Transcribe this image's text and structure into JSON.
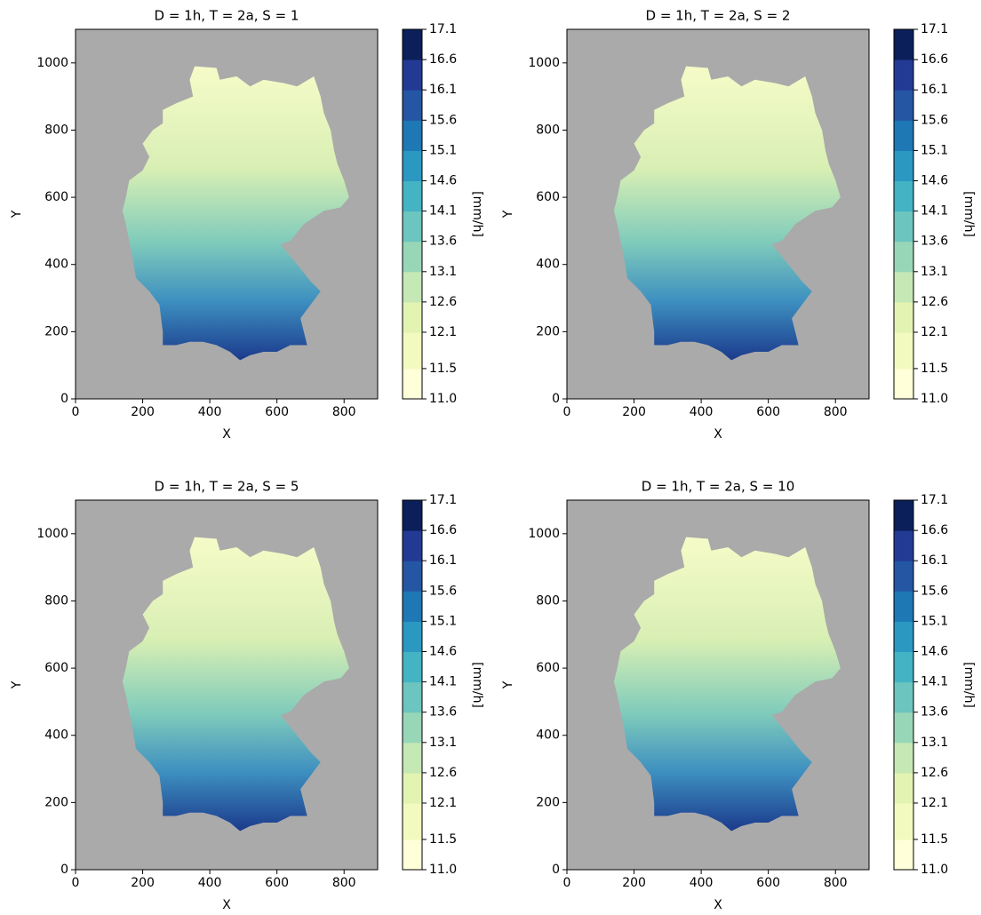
{
  "chart_data": [
    {
      "type": "heatmap",
      "title": "D = 1h, T = 2a, S = 1",
      "xlabel": "X",
      "ylabel": "Y",
      "xlim": [
        0,
        900
      ],
      "ylim": [
        0,
        1100
      ],
      "xticks": [
        0,
        200,
        400,
        600,
        800
      ],
      "yticks": [
        0,
        200,
        400,
        600,
        800,
        1000
      ],
      "colorbar_label": "[mm/h]",
      "colorbar_lim": [
        11.0,
        17.1
      ],
      "colorbar_ticks": [
        {
          "value": 11,
          "label": "11.0"
        },
        11.5,
        12.1,
        12.6,
        13.1,
        13.6,
        14.1,
        14.6,
        15.1,
        15.6,
        16.1,
        16.6,
        17.1
      ],
      "colormap": [
        "#ffffd9",
        "#f3fabf",
        "#e2f3b2",
        "#c5e8b4",
        "#98d6b8",
        "#6cc5be",
        "#44b3c3",
        "#2a98c1",
        "#1e78b4",
        "#2456a4",
        "#233a95",
        "#0b1f5a"
      ],
      "background": "#aaaaaa"
    },
    {
      "type": "heatmap",
      "title": "D = 1h, T = 2a, S = 2",
      "xlabel": "X",
      "ylabel": "Y",
      "xlim": [
        0,
        900
      ],
      "ylim": [
        0,
        1100
      ],
      "xticks": [
        0,
        200,
        400,
        600,
        800
      ],
      "yticks": [
        0,
        200,
        400,
        600,
        800,
        1000
      ],
      "colorbar_label": "[mm/h]",
      "colorbar_lim": [
        11.0,
        17.1
      ],
      "colorbar_ticks": [
        {
          "value": 11,
          "label": "11.0"
        },
        11.5,
        12.1,
        12.6,
        13.1,
        13.6,
        14.1,
        14.6,
        15.1,
        15.6,
        16.1,
        16.6,
        17.1
      ],
      "colormap": [
        "#ffffd9",
        "#f3fabf",
        "#e2f3b2",
        "#c5e8b4",
        "#98d6b8",
        "#6cc5be",
        "#44b3c3",
        "#2a98c1",
        "#1e78b4",
        "#2456a4",
        "#233a95",
        "#0b1f5a"
      ],
      "background": "#aaaaaa"
    },
    {
      "type": "heatmap",
      "title": "D = 1h, T = 2a, S = 5",
      "xlabel": "X",
      "ylabel": "Y",
      "xlim": [
        0,
        900
      ],
      "ylim": [
        0,
        1100
      ],
      "xticks": [
        0,
        200,
        400,
        600,
        800
      ],
      "yticks": [
        0,
        200,
        400,
        600,
        800,
        1000
      ],
      "colorbar_label": "[mm/h]",
      "colorbar_lim": [
        11.0,
        17.1
      ],
      "colorbar_ticks": [
        {
          "value": 11,
          "label": "11.0"
        },
        11.5,
        12.1,
        12.6,
        13.1,
        13.6,
        14.1,
        14.6,
        15.1,
        15.6,
        16.1,
        16.6,
        17.1
      ],
      "colormap": [
        "#ffffd9",
        "#f3fabf",
        "#e2f3b2",
        "#c5e8b4",
        "#98d6b8",
        "#6cc5be",
        "#44b3c3",
        "#2a98c1",
        "#1e78b4",
        "#2456a4",
        "#233a95",
        "#0b1f5a"
      ],
      "background": "#aaaaaa"
    },
    {
      "type": "heatmap",
      "title": "D = 1h, T = 2a, S = 10",
      "xlabel": "X",
      "ylabel": "Y",
      "xlim": [
        0,
        900
      ],
      "ylim": [
        0,
        1100
      ],
      "xticks": [
        0,
        200,
        400,
        600,
        800
      ],
      "yticks": [
        0,
        200,
        400,
        600,
        800,
        1000
      ],
      "colorbar_label": "[mm/h]",
      "colorbar_lim": [
        11.0,
        17.1
      ],
      "colorbar_ticks": [
        {
          "value": 11,
          "label": "11.0"
        },
        11.5,
        12.1,
        12.6,
        13.1,
        13.6,
        14.1,
        14.6,
        15.1,
        15.6,
        16.1,
        16.6,
        17.1
      ],
      "colormap": [
        "#ffffd9",
        "#f3fabf",
        "#e2f3b2",
        "#c5e8b4",
        "#98d6b8",
        "#6cc5be",
        "#44b3c3",
        "#2a98c1",
        "#1e78b4",
        "#2456a4",
        "#233a95",
        "#0b1f5a"
      ],
      "background": "#aaaaaa"
    }
  ]
}
